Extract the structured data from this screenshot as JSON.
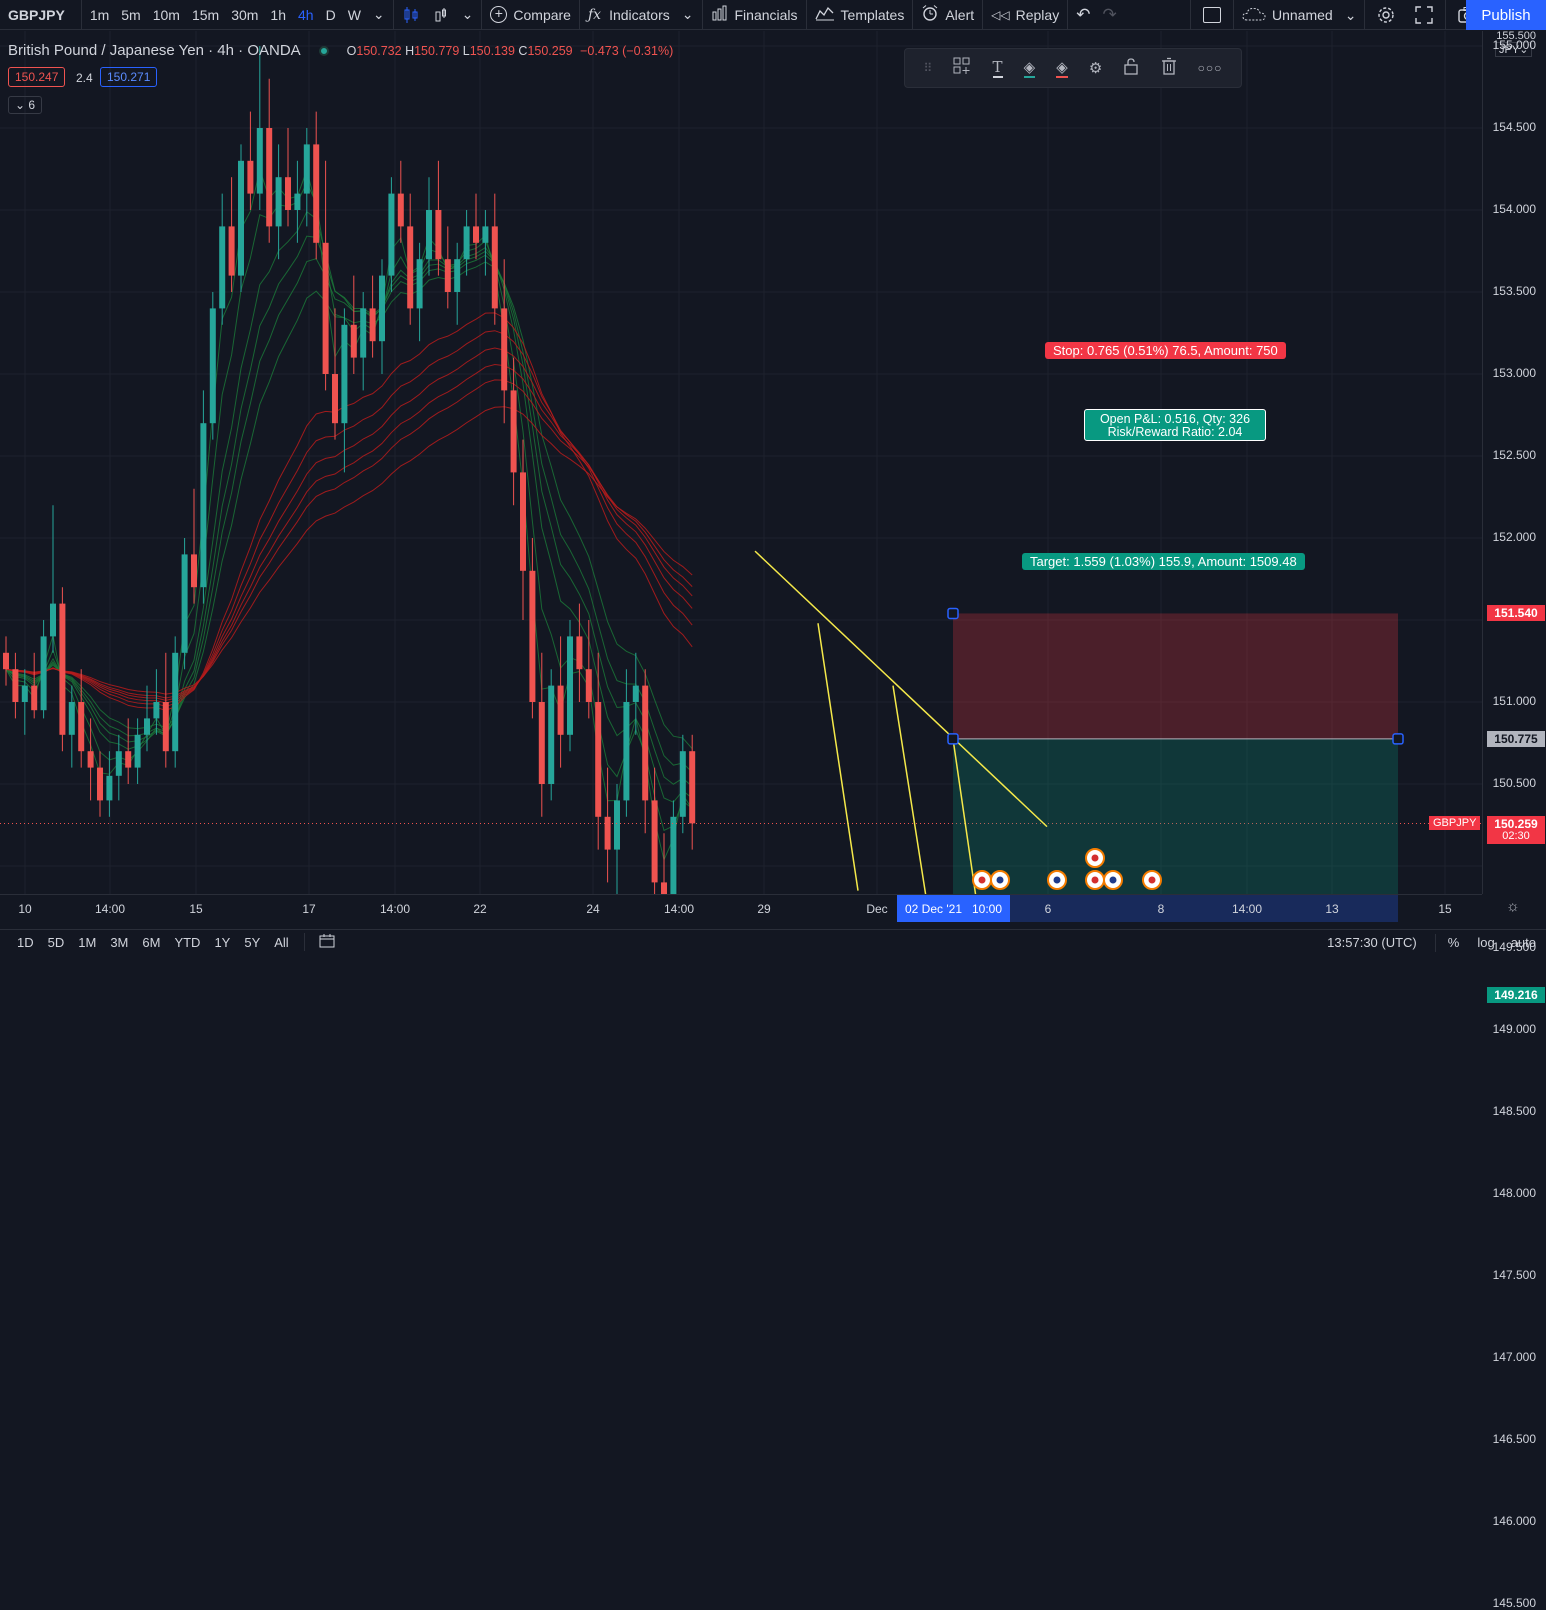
{
  "toolbar": {
    "symbol": "GBPJPY",
    "intervals": [
      "1m",
      "5m",
      "10m",
      "15m",
      "30m",
      "1h",
      "4h",
      "D",
      "W"
    ],
    "active_interval": "4h",
    "compare": "Compare",
    "indicators": "Indicators",
    "financials": "Financials",
    "templates": "Templates",
    "alert": "Alert",
    "replay": "Replay",
    "layout_name": "Unnamed",
    "publish": "Publish"
  },
  "legend": {
    "title": "British Pound / Japanese Yen · 4h · OANDA",
    "o_label": "O",
    "o": "150.732",
    "h_label": "H",
    "h": "150.779",
    "l_label": "L",
    "l": "150.139",
    "c_label": "C",
    "c": "150.259",
    "change": "−0.473 (−0.31%)",
    "bid": "150.247",
    "spread": "2.4",
    "ask": "150.271",
    "indicator_count": "6"
  },
  "position": {
    "stop_label": "Stop: 0.765 (0.51%) 76.5, Amount: 750",
    "pnl_label": "Open P&L: 0.516, Qty: 326",
    "rr_label": "Risk/Reward Ratio: 2.04",
    "target_label": "Target: 1.559 (1.03%) 155.9, Amount: 1509.48"
  },
  "price_axis": {
    "currency": "JPY",
    "top_label": "155.500",
    "ticks": [
      "155.000",
      "154.500",
      "154.000",
      "153.500",
      "153.000",
      "152.500",
      "152.000",
      "151.000",
      "150.500",
      "149.500",
      "149.000",
      "148.500",
      "148.000",
      "147.500",
      "147.000",
      "146.500",
      "146.000",
      "145.500"
    ],
    "stop_tag": "151.540",
    "entry_tag": "150.775",
    "current_tag": "150.259",
    "countdown": "02:30",
    "target_tag": "149.216",
    "symbol_tag": "GBPJPY"
  },
  "time_axis": {
    "labels": [
      "10",
      "14:00",
      "15",
      "17",
      "14:00",
      "22",
      "24",
      "14:00",
      "29",
      "Dec",
      "6",
      "8",
      "14:00",
      "13",
      "15"
    ],
    "highlight_date": "02 Dec '21",
    "highlight_time": "10:00"
  },
  "bottom_bar": {
    "ranges": [
      "1D",
      "5D",
      "1M",
      "3M",
      "6M",
      "YTD",
      "1Y",
      "5Y",
      "All"
    ],
    "clock": "13:57:30 (UTC)",
    "percent": "%",
    "log": "log",
    "auto": "auto"
  },
  "colors": {
    "up": "#26a69a",
    "down": "#ef5350",
    "accent": "#2962ff",
    "trendline": "#f5e94a"
  },
  "chart_data": {
    "type": "candlestick",
    "ylim": [
      145.0,
      155.6
    ],
    "candles": [
      [
        151.3,
        151.4,
        151.1,
        151.2
      ],
      [
        151.2,
        151.3,
        150.9,
        151.0
      ],
      [
        151.0,
        151.2,
        150.8,
        151.1
      ],
      [
        151.1,
        151.3,
        150.9,
        150.95
      ],
      [
        150.95,
        151.5,
        150.9,
        151.4
      ],
      [
        151.4,
        152.2,
        151.3,
        151.6
      ],
      [
        151.6,
        151.7,
        150.7,
        150.8
      ],
      [
        150.8,
        151.1,
        150.6,
        151.0
      ],
      [
        151.0,
        151.2,
        150.6,
        150.7
      ],
      [
        150.7,
        150.9,
        150.4,
        150.6
      ],
      [
        150.6,
        150.7,
        150.3,
        150.4
      ],
      [
        150.4,
        150.7,
        150.3,
        150.55
      ],
      [
        150.55,
        150.8,
        150.4,
        150.7
      ],
      [
        150.7,
        150.9,
        150.5,
        150.6
      ],
      [
        150.6,
        150.9,
        150.5,
        150.8
      ],
      [
        150.8,
        151.1,
        150.7,
        150.9
      ],
      [
        150.9,
        151.2,
        150.8,
        151.0
      ],
      [
        151.0,
        151.3,
        150.6,
        150.7
      ],
      [
        150.7,
        151.4,
        150.6,
        151.3
      ],
      [
        151.3,
        152.0,
        151.2,
        151.9
      ],
      [
        151.9,
        152.3,
        151.6,
        151.7
      ],
      [
        151.7,
        152.9,
        151.6,
        152.7
      ],
      [
        152.7,
        153.5,
        152.6,
        153.4
      ],
      [
        153.4,
        154.1,
        153.3,
        153.9
      ],
      [
        153.9,
        154.2,
        153.5,
        153.6
      ],
      [
        153.6,
        154.4,
        153.5,
        154.3
      ],
      [
        154.3,
        154.6,
        154.0,
        154.1
      ],
      [
        154.1,
        155.0,
        154.0,
        154.5
      ],
      [
        154.5,
        154.8,
        153.8,
        153.9
      ],
      [
        153.9,
        154.4,
        153.7,
        154.2
      ],
      [
        154.2,
        154.5,
        153.9,
        154.0
      ],
      [
        154.0,
        154.3,
        153.8,
        154.1
      ],
      [
        154.1,
        154.5,
        153.9,
        154.4
      ],
      [
        154.4,
        154.6,
        153.7,
        153.8
      ],
      [
        153.8,
        154.3,
        152.9,
        153.0
      ],
      [
        153.0,
        153.4,
        152.6,
        152.7
      ],
      [
        152.7,
        153.4,
        152.4,
        153.3
      ],
      [
        153.3,
        153.6,
        153.0,
        153.1
      ],
      [
        153.1,
        153.5,
        152.9,
        153.4
      ],
      [
        153.4,
        153.6,
        153.1,
        153.2
      ],
      [
        153.2,
        153.7,
        153.0,
        153.6
      ],
      [
        153.6,
        154.2,
        153.5,
        154.1
      ],
      [
        154.1,
        154.3,
        153.8,
        153.9
      ],
      [
        153.9,
        154.1,
        153.3,
        153.4
      ],
      [
        153.4,
        153.8,
        153.2,
        153.7
      ],
      [
        153.7,
        154.2,
        153.6,
        154.0
      ],
      [
        154.0,
        154.3,
        153.6,
        153.7
      ],
      [
        153.7,
        153.9,
        153.4,
        153.5
      ],
      [
        153.5,
        153.8,
        153.3,
        153.7
      ],
      [
        153.7,
        154.0,
        153.6,
        153.9
      ],
      [
        153.9,
        154.1,
        153.7,
        153.8
      ],
      [
        153.8,
        154.0,
        153.6,
        153.9
      ],
      [
        153.9,
        154.1,
        153.3,
        153.4
      ],
      [
        153.4,
        153.7,
        152.7,
        152.9
      ],
      [
        152.9,
        153.1,
        152.2,
        152.4
      ],
      [
        152.4,
        152.6,
        151.5,
        151.8
      ],
      [
        151.8,
        152.0,
        150.9,
        151.0
      ],
      [
        151.0,
        151.3,
        150.3,
        150.5
      ],
      [
        150.5,
        151.2,
        150.4,
        151.1
      ],
      [
        151.1,
        151.4,
        150.6,
        150.8
      ],
      [
        150.8,
        151.5,
        150.7,
        151.4
      ],
      [
        151.4,
        151.6,
        151.0,
        151.2
      ],
      [
        151.2,
        151.5,
        150.9,
        151.0
      ],
      [
        151.0,
        151.3,
        150.1,
        150.3
      ],
      [
        150.3,
        150.6,
        149.9,
        150.1
      ],
      [
        150.1,
        150.5,
        149.7,
        150.4
      ],
      [
        150.4,
        151.2,
        150.3,
        151.0
      ],
      [
        151.0,
        151.3,
        150.8,
        151.1
      ],
      [
        151.1,
        151.2,
        150.2,
        150.4
      ],
      [
        150.4,
        150.6,
        149.7,
        149.9
      ],
      [
        149.9,
        150.2,
        149.6,
        149.8
      ],
      [
        149.8,
        150.4,
        149.7,
        150.3
      ],
      [
        150.3,
        150.8,
        150.2,
        150.7
      ],
      [
        150.7,
        150.8,
        150.1,
        150.26
      ]
    ],
    "position_levels": {
      "stop": 151.54,
      "entry": 150.775,
      "target": 149.216
    }
  }
}
